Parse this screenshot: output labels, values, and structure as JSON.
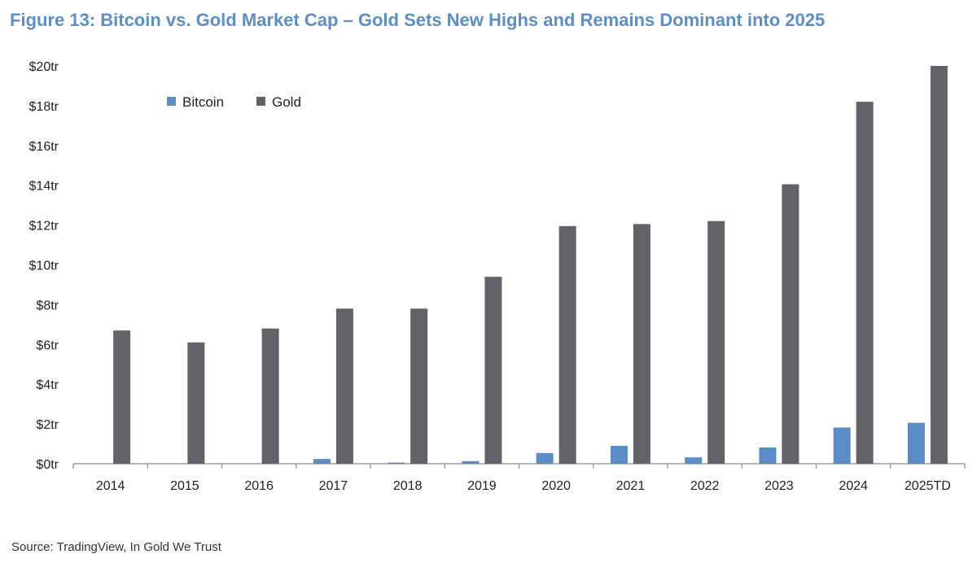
{
  "figure": {
    "title": "Figure 13: Bitcoin vs. Gold Market Cap – Gold Sets New Highs and Remains Dominant into 2025",
    "source": "Source: TradingView, In Gold We Trust"
  },
  "chart_data": {
    "type": "bar",
    "title": "Figure 13: Bitcoin vs. Gold Market Cap – Gold Sets New Highs and Remains Dominant into 2025",
    "xlabel": "",
    "ylabel": "",
    "categories": [
      "2014",
      "2015",
      "2016",
      "2017",
      "2018",
      "2019",
      "2020",
      "2021",
      "2022",
      "2023",
      "2024",
      "2025TD"
    ],
    "series": [
      {
        "name": "Bitcoin",
        "color": "#5a8dc5",
        "values": [
          0.006,
          0.006,
          0.015,
          0.24,
          0.06,
          0.13,
          0.54,
          0.9,
          0.32,
          0.82,
          1.82,
          2.06
        ]
      },
      {
        "name": "Gold",
        "color": "#636266",
        "values": [
          6.7,
          6.1,
          6.8,
          7.8,
          7.8,
          9.4,
          11.95,
          12.05,
          12.2,
          14.05,
          18.2,
          20.0
        ]
      }
    ],
    "ylim": [
      0,
      20
    ],
    "ytick_values": [
      0,
      2,
      4,
      6,
      8,
      10,
      12,
      14,
      16,
      18,
      20
    ],
    "ytick_labels": [
      "$0tr",
      "$2tr",
      "$4tr",
      "$6tr",
      "$8tr",
      "$10tr",
      "$12tr",
      "$14tr",
      "$16tr",
      "$18tr",
      "$20tr"
    ],
    "grid": false,
    "legend_position": "top-left"
  }
}
